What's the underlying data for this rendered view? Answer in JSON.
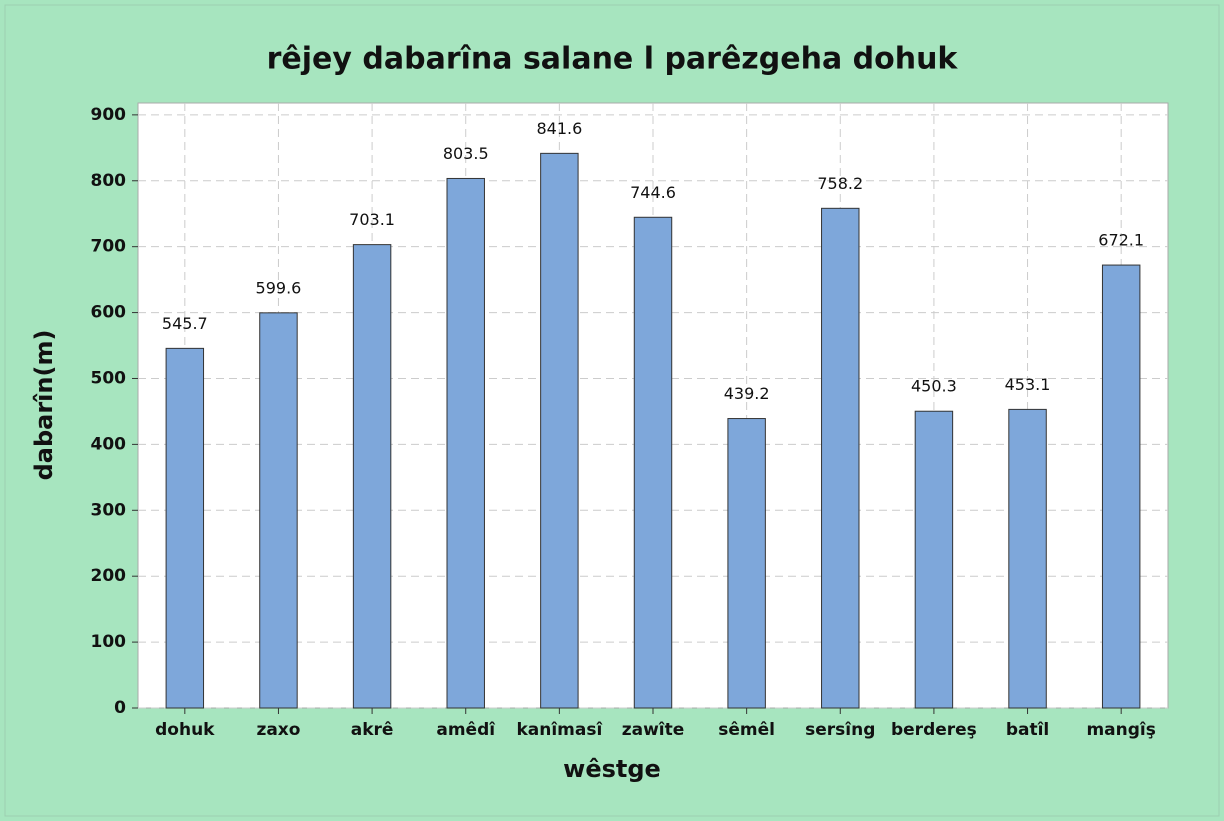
{
  "chart_data": {
    "type": "bar",
    "title": "rêjey dabarîna salane l parêzgeha dohuk",
    "x_label": "wêstge",
    "y_label": "dabarîn(m)",
    "categories": [
      "dohuk",
      "zaxo",
      "akrê",
      "amêdî",
      "kanîmasî",
      "zawîte",
      "sêmêl",
      "sersîng",
      "berdereş",
      "batîl",
      "mangîş"
    ],
    "values": [
      545.7,
      599.6,
      703.1,
      803.5,
      841.6,
      744.6,
      439.2,
      758.2,
      450.3,
      453.1,
      672.1
    ],
    "color": "#7ea7da",
    "ylim": [
      0,
      918
    ],
    "yticks": [
      0,
      100,
      200,
      300,
      400,
      500,
      600,
      700,
      800,
      900
    ],
    "grid": true
  }
}
